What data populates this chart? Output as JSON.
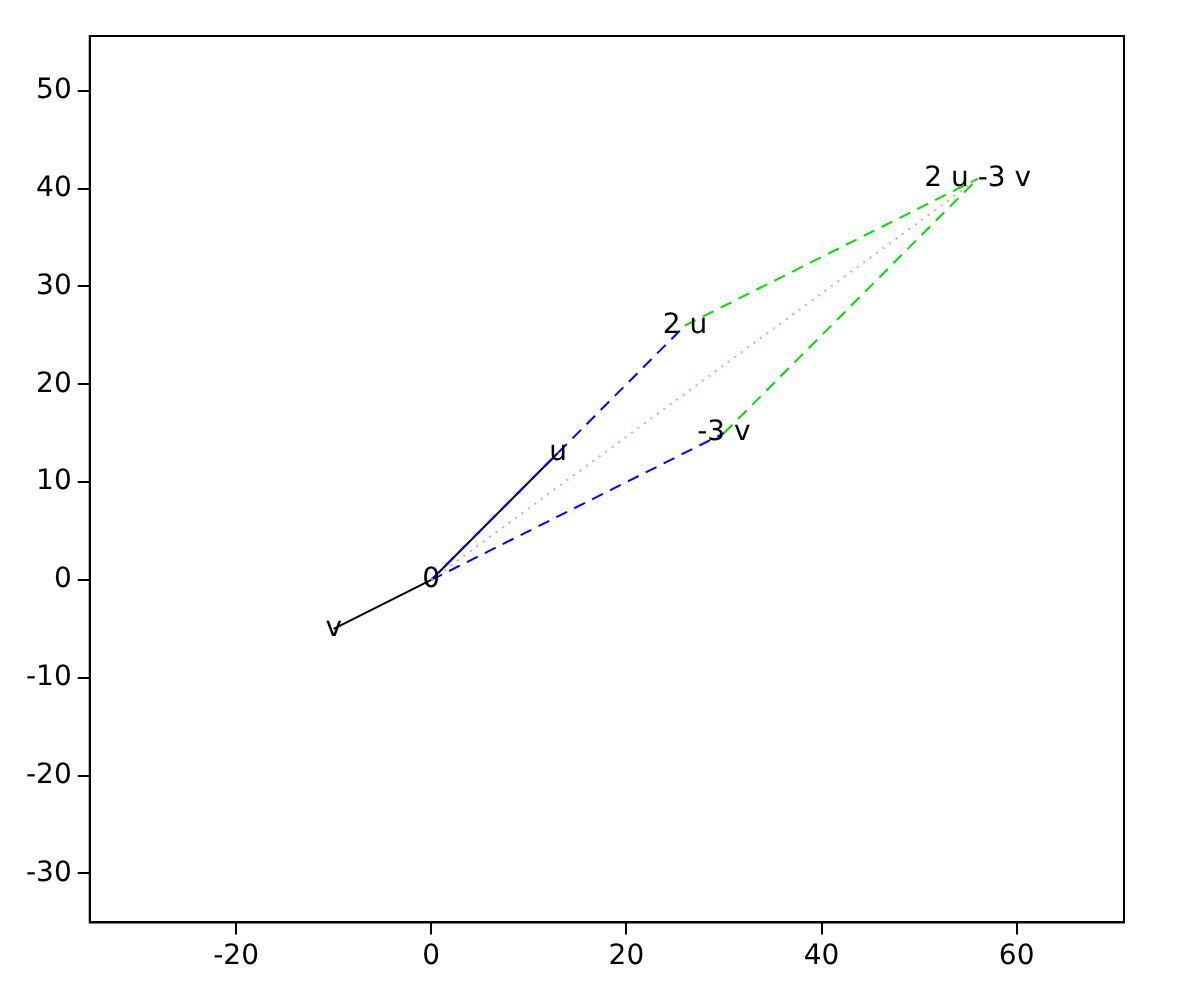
{
  "chart_data": {
    "type": "line",
    "xlim": [
      -35,
      71
    ],
    "ylim": [
      -35,
      55.6
    ],
    "xticks": [
      -20,
      0,
      20,
      40,
      60
    ],
    "yticks": [
      -30,
      -20,
      -10,
      0,
      10,
      20,
      30,
      40,
      50
    ],
    "grid": false,
    "legend": false,
    "marker": "none",
    "series": [
      {
        "color": "#ff9999",
        "line_style": "dotted",
        "x": [
          0,
          56
        ],
        "values": [
          0,
          41
        ]
      },
      {
        "color": "#0000ff",
        "line_style": "dashed",
        "x": [
          0,
          26,
          null,
          0,
          30
        ],
        "values": [
          0,
          26,
          null,
          0,
          15
        ]
      },
      {
        "color": "#00dd00",
        "line_style": "dashed",
        "x": [
          26,
          56,
          null,
          30,
          56
        ],
        "values": [
          26,
          41,
          null,
          15,
          41
        ]
      },
      {
        "color": "#000000",
        "line_style": "solid",
        "x": [
          0,
          13,
          null,
          0,
          -10
        ],
        "values": [
          0,
          13,
          null,
          0,
          -5
        ]
      }
    ],
    "annotations": [
      {
        "text": "0",
        "x": 0,
        "y": 0
      },
      {
        "text": "u",
        "x": 13,
        "y": 13
      },
      {
        "text": "v",
        "x": -10,
        "y": -5
      },
      {
        "text": "2 u",
        "x": 26,
        "y": 26
      },
      {
        "text": "-3 v",
        "x": 30,
        "y": 15
      },
      {
        "text": "2 u -3 v",
        "x": 56,
        "y": 41
      }
    ]
  }
}
